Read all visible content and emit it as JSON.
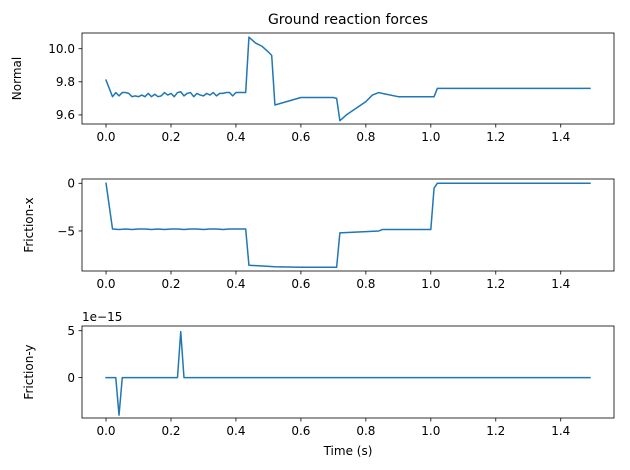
{
  "chart_data": [
    {
      "type": "line",
      "title": "Ground reaction forces",
      "ylabel": "Normal",
      "xlabel": "",
      "xlim": [
        -0.074,
        1.564
      ],
      "ylim": [
        9.545,
        10.095
      ],
      "xticks": [
        0.0,
        0.2,
        0.4,
        0.6,
        0.8,
        1.0,
        1.2,
        1.4
      ],
      "xtick_labels": [
        "0.0",
        "0.2",
        "0.4",
        "0.6",
        "0.8",
        "1.0",
        "1.2",
        "1.4"
      ],
      "yticks": [
        9.6,
        9.8,
        10.0
      ],
      "ytick_labels": [
        "9.6",
        "9.8",
        "10.0"
      ],
      "offset_label": "",
      "color": "#1f77b4",
      "series": [
        {
          "x": [
            0.0,
            0.02,
            0.03,
            0.04,
            0.05,
            0.06,
            0.07,
            0.08,
            0.09,
            0.1,
            0.11,
            0.12,
            0.13,
            0.14,
            0.15,
            0.16,
            0.17,
            0.18,
            0.19,
            0.2,
            0.21,
            0.22,
            0.23,
            0.24,
            0.25,
            0.26,
            0.27,
            0.28,
            0.29,
            0.3,
            0.31,
            0.32,
            0.33,
            0.34,
            0.35,
            0.36,
            0.37,
            0.38,
            0.39,
            0.4,
            0.41,
            0.42,
            0.43,
            0.44,
            0.46,
            0.48,
            0.5,
            0.51,
            0.52,
            0.6,
            0.7,
            0.71,
            0.72,
            0.74,
            0.8,
            0.82,
            0.84,
            0.85,
            0.9,
            1.0,
            1.01,
            1.02,
            1.49
          ],
          "y": [
            9.81,
            9.71,
            9.735,
            9.715,
            9.735,
            9.735,
            9.73,
            9.71,
            9.715,
            9.71,
            9.72,
            9.71,
            9.73,
            9.71,
            9.725,
            9.71,
            9.715,
            9.735,
            9.72,
            9.73,
            9.71,
            9.735,
            9.74,
            9.715,
            9.73,
            9.735,
            9.71,
            9.73,
            9.72,
            9.715,
            9.73,
            9.72,
            9.735,
            9.715,
            9.73,
            9.73,
            9.735,
            9.735,
            9.715,
            9.735,
            9.735,
            9.735,
            9.735,
            10.07,
            10.035,
            10.015,
            9.98,
            9.96,
            9.66,
            9.705,
            9.705,
            9.7,
            9.565,
            9.6,
            9.68,
            9.72,
            9.735,
            9.73,
            9.71,
            9.71,
            9.71,
            9.76,
            9.76
          ]
        }
      ]
    },
    {
      "type": "line",
      "title": "",
      "ylabel": "Friction-x",
      "xlabel": "",
      "xlim": [
        -0.074,
        1.564
      ],
      "ylim": [
        -9.2,
        0.45
      ],
      "xticks": [
        0.0,
        0.2,
        0.4,
        0.6,
        0.8,
        1.0,
        1.2,
        1.4
      ],
      "xtick_labels": [
        "0.0",
        "0.2",
        "0.4",
        "0.6",
        "0.8",
        "1.0",
        "1.2",
        "1.4"
      ],
      "yticks": [
        -5,
        0
      ],
      "ytick_labels": [
        "−5",
        "0"
      ],
      "offset_label": "",
      "color": "#1f77b4",
      "series": [
        {
          "x": [
            0.0,
            0.02,
            0.04,
            0.06,
            0.08,
            0.1,
            0.12,
            0.14,
            0.16,
            0.18,
            0.2,
            0.22,
            0.24,
            0.26,
            0.28,
            0.3,
            0.32,
            0.34,
            0.36,
            0.38,
            0.4,
            0.43,
            0.44,
            0.52,
            0.6,
            0.7,
            0.71,
            0.72,
            0.84,
            0.85,
            1.0,
            1.01,
            1.02,
            1.49
          ],
          "y": [
            0.0,
            -4.8,
            -4.85,
            -4.8,
            -4.85,
            -4.8,
            -4.8,
            -4.85,
            -4.8,
            -4.85,
            -4.8,
            -4.8,
            -4.85,
            -4.8,
            -4.8,
            -4.85,
            -4.8,
            -4.8,
            -4.85,
            -4.8,
            -4.8,
            -4.8,
            -8.6,
            -8.75,
            -8.8,
            -8.8,
            -8.8,
            -5.2,
            -5.0,
            -4.85,
            -4.85,
            -0.5,
            0.0,
            0.0
          ]
        }
      ]
    },
    {
      "type": "line",
      "title": "",
      "ylabel": "Friction-y",
      "xlabel": "Time (s)",
      "xlim": [
        -0.074,
        1.564
      ],
      "ylim": [
        -4.3,
        5.5
      ],
      "xticks": [
        0.0,
        0.2,
        0.4,
        0.6,
        0.8,
        1.0,
        1.2,
        1.4
      ],
      "xtick_labels": [
        "0.0",
        "0.2",
        "0.4",
        "0.6",
        "0.8",
        "1.0",
        "1.2",
        "1.4"
      ],
      "yticks": [
        0,
        5
      ],
      "ytick_labels": [
        "0",
        "5"
      ],
      "offset_label": "1e−15",
      "color": "#1f77b4",
      "series": [
        {
          "x": [
            0.0,
            0.03,
            0.04,
            0.05,
            0.22,
            0.23,
            0.24,
            1.49
          ],
          "y": [
            0.0,
            0.0,
            -4.0,
            0.0,
            0.0,
            4.9,
            0.0,
            0.0
          ]
        }
      ]
    }
  ]
}
